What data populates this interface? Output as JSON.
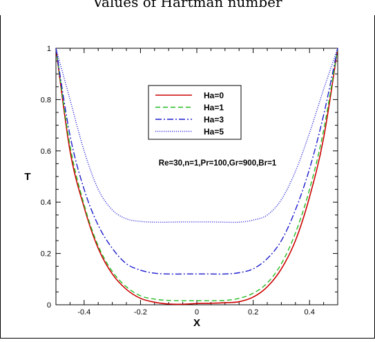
{
  "caption": "Values of Hartman number",
  "chart_data": {
    "type": "line",
    "title": "",
    "xlabel": "X",
    "ylabel": "T",
    "xlim": [
      -0.5,
      0.5
    ],
    "ylim": [
      0,
      1
    ],
    "xticks": [
      "-0.4",
      "-0.2",
      "0",
      "0.2",
      "0.4"
    ],
    "yticks": [
      "0",
      "0.2",
      "0.4",
      "0.6",
      "0.8",
      "1"
    ],
    "grid": false,
    "legend": "upper-center",
    "annotation": "Re=30,n=1,Pr=100,Gr=900,Br=1",
    "x": [
      -0.5,
      -0.45,
      -0.4,
      -0.35,
      -0.3,
      -0.25,
      -0.2,
      -0.15,
      -0.1,
      -0.05,
      0,
      0.05,
      0.1,
      0.15,
      0.2,
      0.25,
      0.3,
      0.35,
      0.4,
      0.45,
      0.5
    ],
    "series": [
      {
        "name": "Ha=0",
        "color": "#cc0000",
        "dash": "solid",
        "values": [
          1.0,
          0.6,
          0.38,
          0.22,
          0.12,
          0.06,
          0.025,
          0.01,
          0.003,
          0.002,
          0.005,
          0.006,
          0.008,
          0.012,
          0.03,
          0.07,
          0.14,
          0.25,
          0.42,
          0.65,
          1.0
        ]
      },
      {
        "name": "Ha=1",
        "color": "#22bb22",
        "dash": "dashed",
        "values": [
          1.0,
          0.62,
          0.39,
          0.23,
          0.13,
          0.07,
          0.035,
          0.022,
          0.017,
          0.016,
          0.016,
          0.016,
          0.017,
          0.025,
          0.045,
          0.085,
          0.16,
          0.28,
          0.45,
          0.68,
          1.0
        ]
      },
      {
        "name": "Ha=3",
        "color": "#1a1acc",
        "dash": "dashdot",
        "values": [
          1.0,
          0.66,
          0.45,
          0.31,
          0.22,
          0.16,
          0.135,
          0.123,
          0.12,
          0.12,
          0.12,
          0.12,
          0.12,
          0.125,
          0.14,
          0.18,
          0.25,
          0.37,
          0.53,
          0.74,
          1.0
        ]
      },
      {
        "name": "Ha=5",
        "color": "#3333dd",
        "dash": "dotted",
        "values": [
          1.0,
          0.8,
          0.6,
          0.45,
          0.37,
          0.335,
          0.325,
          0.322,
          0.322,
          0.323,
          0.323,
          0.323,
          0.322,
          0.322,
          0.33,
          0.35,
          0.41,
          0.52,
          0.67,
          0.84,
          1.0
        ]
      }
    ]
  }
}
